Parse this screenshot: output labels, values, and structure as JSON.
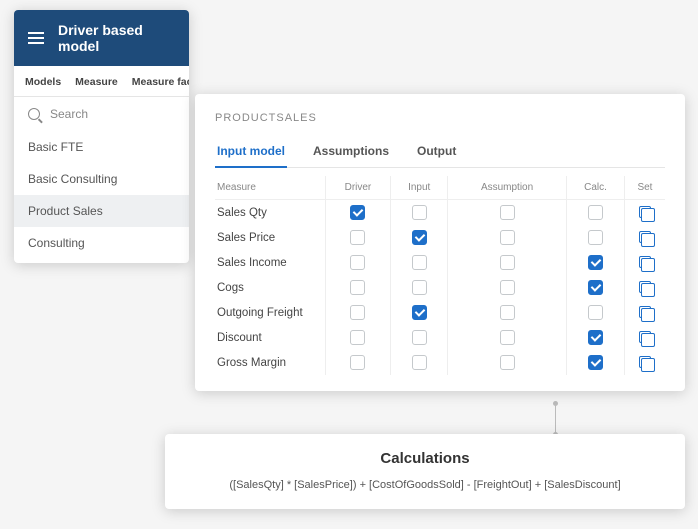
{
  "colors": {
    "brand_header": "#1e4b7a",
    "accent": "#1e6fc9",
    "panel_bg": "#ffffff"
  },
  "header": {
    "title": "Driver based model"
  },
  "sidebar_tabs": [
    {
      "label": "Models"
    },
    {
      "label": "Measure"
    },
    {
      "label": "Measure fact ..."
    }
  ],
  "search": {
    "placeholder": "Search"
  },
  "sidebar_items": [
    {
      "label": "Basic FTE",
      "active": false
    },
    {
      "label": "Basic Consulting",
      "active": false
    },
    {
      "label": "Product Sales",
      "active": true
    },
    {
      "label": "Consulting",
      "active": false
    }
  ],
  "panel": {
    "title": "PRODUCTSALES",
    "tabs": [
      {
        "label": "Input model",
        "active": true
      },
      {
        "label": "Assumptions",
        "active": false
      },
      {
        "label": "Output",
        "active": false
      }
    ],
    "columns": [
      "Measure",
      "Driver",
      "Input",
      "Assumption",
      "Calc.",
      "Set"
    ],
    "rows": [
      {
        "measure": "Sales Qty",
        "driver": true,
        "input": false,
        "assumption": false,
        "calc": false
      },
      {
        "measure": "Sales Price",
        "driver": false,
        "input": true,
        "assumption": false,
        "calc": false
      },
      {
        "measure": "Sales Income",
        "driver": false,
        "input": false,
        "assumption": false,
        "calc": true
      },
      {
        "measure": "Cogs",
        "driver": false,
        "input": false,
        "assumption": false,
        "calc": true
      },
      {
        "measure": "Outgoing Freight",
        "driver": false,
        "input": true,
        "assumption": false,
        "calc": false
      },
      {
        "measure": "Discount",
        "driver": false,
        "input": false,
        "assumption": false,
        "calc": true
      },
      {
        "measure": "Gross Margin",
        "driver": false,
        "input": false,
        "assumption": false,
        "calc": true
      }
    ]
  },
  "calculations": {
    "title": "Calculations",
    "formula": "([SalesQty] * [SalesPrice]) + [CostOfGoodsSold] - [FreightOut] + [SalesDiscount]"
  }
}
